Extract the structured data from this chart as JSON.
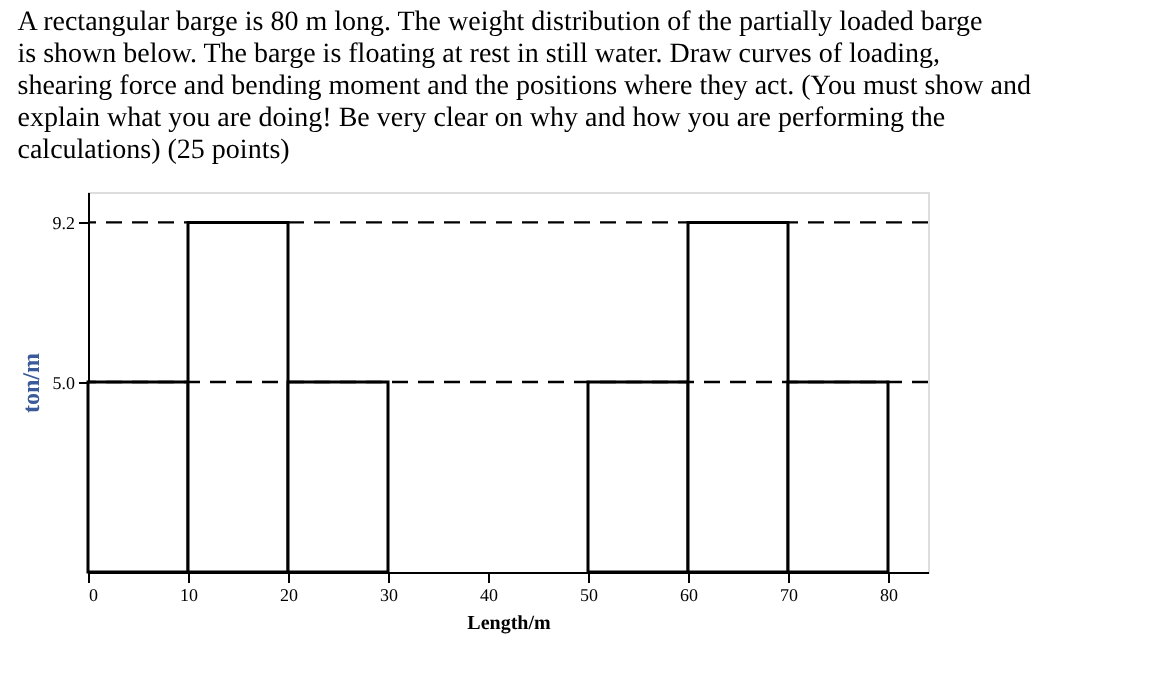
{
  "chart_data": {
    "type": "histogram",
    "title": "A rectangular barge is 80 m long. The weight distribution of the partially loaded barge is shown below. The barge is floating at rest in still water. Draw curves of loading, shearing force and bending moment and the positions where they act. (You must show and explain what you are doing! Be very clear on why and how you are performing the calculations) (25 points)",
    "xlabel": "Length/m",
    "ylabel": "ton/m",
    "bins": [
      0,
      10,
      20,
      30,
      40,
      50,
      60,
      70,
      80
    ],
    "values": [
      5.0,
      9.2,
      5.0,
      null,
      null,
      5.0,
      9.2,
      5.0
    ],
    "color": "#ffffff",
    "xlim": [
      0,
      84
    ],
    "xticks": [
      0,
      10,
      20,
      30,
      40,
      50,
      60,
      70,
      80
    ],
    "ylim": [
      0,
      10
    ],
    "yticks": [
      {
        "value": 5.0,
        "label": "5.0"
      },
      9.2
    ],
    "ref_lines": [
      {
        "axis": "y",
        "value": 9.2,
        "label": null,
        "line_style": "dashed"
      },
      {
        "axis": "y",
        "value": 5.0,
        "label": null,
        "line_style": "dashed"
      }
    ],
    "grid": false
  }
}
